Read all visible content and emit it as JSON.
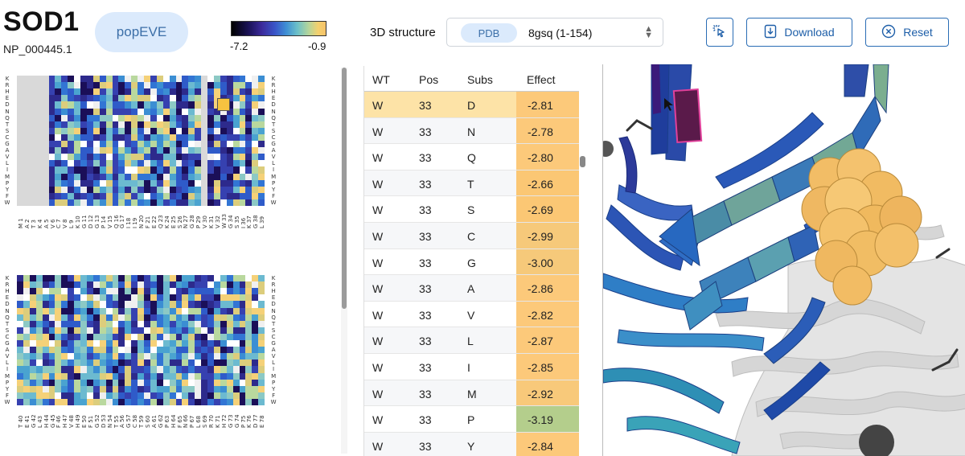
{
  "header": {
    "gene": "SOD1",
    "transcript": "NP_000445.1",
    "model_button": "popEVE",
    "colorbar": {
      "min_label": "-7.2",
      "max_label": "-0.9"
    },
    "structure_label": "3D structure",
    "structure_source": "PDB",
    "structure_value": "8gsq (1-154)",
    "download_label": "Download",
    "reset_label": "Reset"
  },
  "heatmap": {
    "amino_acids": [
      "K",
      "R",
      "H",
      "E",
      "D",
      "N",
      "Q",
      "T",
      "S",
      "C",
      "G",
      "A",
      "V",
      "L",
      "I",
      "M",
      "P",
      "Y",
      "F",
      "W"
    ],
    "top_positions": [
      "M 1",
      "A 2",
      "T 3",
      "K 4",
      "A 5",
      "V 6",
      "C 7",
      "V 8",
      "L 9",
      "K 10",
      "G 11",
      "D 12",
      "G 13",
      "P 14",
      "V 15",
      "Q 16",
      "G 17",
      "I 18",
      "I 19",
      "N 20",
      "F 21",
      "E 22",
      "Q 23",
      "K 24",
      "E 25",
      "S 26",
      "N 27",
      "G 28",
      "P 29",
      "V 30",
      "K 31",
      "V 32",
      "W 33",
      "G 34",
      "S 35",
      "I 36",
      "K 37",
      "G 38",
      "L 39"
    ],
    "bottom_positions": [
      "T 40",
      "E 41",
      "G 42",
      "L 43",
      "H 44",
      "G 45",
      "F 46",
      "H 47",
      "V 48",
      "H 49",
      "E 50",
      "F 51",
      "G 52",
      "D 53",
      "N 54",
      "T 55",
      "A 56",
      "G 57",
      "C 58",
      "T 59",
      "S 60",
      "A 61",
      "G 62",
      "P 63",
      "H 64",
      "F 65",
      "N 66",
      "P 67",
      "L 68",
      "S 69",
      "R 70",
      "K 71",
      "H 72",
      "G 73",
      "G 74",
      "P 75",
      "K 76",
      "D 77",
      "E 78"
    ],
    "selected": {
      "position": "W 33",
      "substitution": "D"
    }
  },
  "table": {
    "columns": [
      "WT",
      "Pos",
      "Subs",
      "Effect"
    ],
    "rows": [
      {
        "wt": "W",
        "pos": "33",
        "subs": "D",
        "effect": "-2.81",
        "color": "#fcc97a",
        "selected": true
      },
      {
        "wt": "W",
        "pos": "33",
        "subs": "N",
        "effect": "-2.78",
        "color": "#fcc97a"
      },
      {
        "wt": "W",
        "pos": "33",
        "subs": "Q",
        "effect": "-2.80",
        "color": "#fcc97a"
      },
      {
        "wt": "W",
        "pos": "33",
        "subs": "T",
        "effect": "-2.66",
        "color": "#fbc774"
      },
      {
        "wt": "W",
        "pos": "33",
        "subs": "S",
        "effect": "-2.69",
        "color": "#fbc774"
      },
      {
        "wt": "W",
        "pos": "33",
        "subs": "C",
        "effect": "-2.99",
        "color": "#f6c97a"
      },
      {
        "wt": "W",
        "pos": "33",
        "subs": "G",
        "effect": "-3.00",
        "color": "#f6c97a"
      },
      {
        "wt": "W",
        "pos": "33",
        "subs": "A",
        "effect": "-2.86",
        "color": "#fcc97a"
      },
      {
        "wt": "W",
        "pos": "33",
        "subs": "V",
        "effect": "-2.82",
        "color": "#fcc97a"
      },
      {
        "wt": "W",
        "pos": "33",
        "subs": "L",
        "effect": "-2.87",
        "color": "#fcc97a"
      },
      {
        "wt": "W",
        "pos": "33",
        "subs": "I",
        "effect": "-2.85",
        "color": "#fcc97a"
      },
      {
        "wt": "W",
        "pos": "33",
        "subs": "M",
        "effect": "-2.92",
        "color": "#f8c97a"
      },
      {
        "wt": "W",
        "pos": "33",
        "subs": "P",
        "effect": "-3.19",
        "color": "#b4ce8c"
      },
      {
        "wt": "W",
        "pos": "33",
        "subs": "Y",
        "effect": "-2.84",
        "color": "#fcc97a"
      }
    ]
  },
  "colors": {
    "accent": "#2a6db5",
    "pill_bg": "#dbeafc",
    "selected_row": "#fde3a7",
    "heatmap_blank": "#d9d9d9",
    "heatmap_highlight": "#f6c340"
  }
}
